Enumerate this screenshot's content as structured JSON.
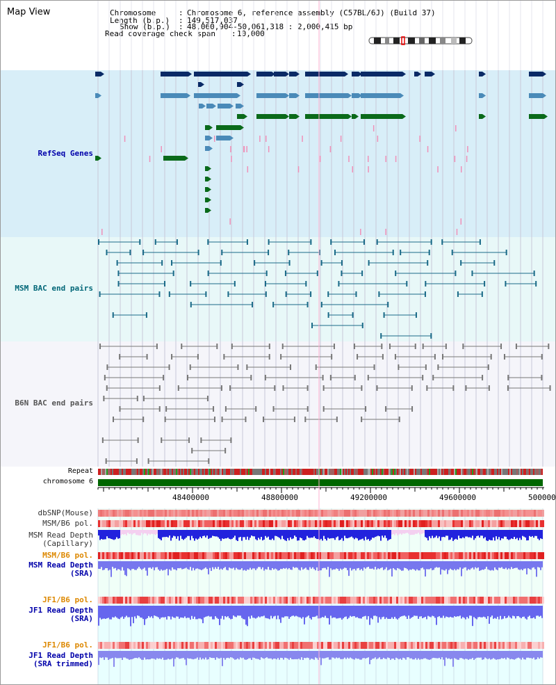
{
  "title": "Map View",
  "header": {
    "chromosome_key": "Chromosome",
    "chromosome_val": "Chromosome 6, reference assembly (C57BL/6J) (Build 37)",
    "length_key": "Length (b.p.)",
    "length_val": "149,517,037",
    "show_key": "Show (b.p.)",
    "show_val": "48,060,904-50,061,318 : 2,000,415 bp",
    "coverage_key": "Read coverage check span",
    "coverage_val": "10,000",
    "sep": ":"
  },
  "tracks": {
    "refseq": "RefSeq Genes",
    "msm_bac": "MSM BAC end pairs",
    "b6n_bac": "B6N BAC end pairs",
    "repeat": "Repeat",
    "chromosome": "chromosome 6",
    "dbsnp": "dbSNP(Mouse)",
    "msm_b6_pol": "MSM/B6 pol.",
    "msm_depth_cap_1": "MSM Read Depth",
    "msm_depth_cap_2": "(Capillary)",
    "msm_b6_pol2": "MSM/B6 pol.",
    "msm_depth_sra_1": "MSM Read Depth",
    "msm_depth_sra_2": "(SRA)",
    "jf1_b6_pol": "JF1/B6 pol.",
    "jf1_depth_sra_1": "JF1 Read Depth",
    "jf1_depth_sra_2": "(SRA)",
    "jf1_b6_pol2": "JF1/B6 pol.",
    "jf1_depth_trim_1": "JF1 Read Depth",
    "jf1_depth_trim_2": "(SRA trimmed)"
  },
  "axis": {
    "ticks": [
      "48400000",
      "48800000",
      "49200000",
      "49600000",
      "500000"
    ]
  },
  "colors": {
    "refseq_bg": "#d8eef8",
    "msm_bac_bg": "#e8f8f8",
    "b6n_bac_bg": "#f4f4fa",
    "refseq_label": "#0000aa",
    "msm_label": "#006677",
    "b6n_label": "#555555",
    "blue_label": "#0000aa",
    "orange_label": "#dd8800"
  }
}
